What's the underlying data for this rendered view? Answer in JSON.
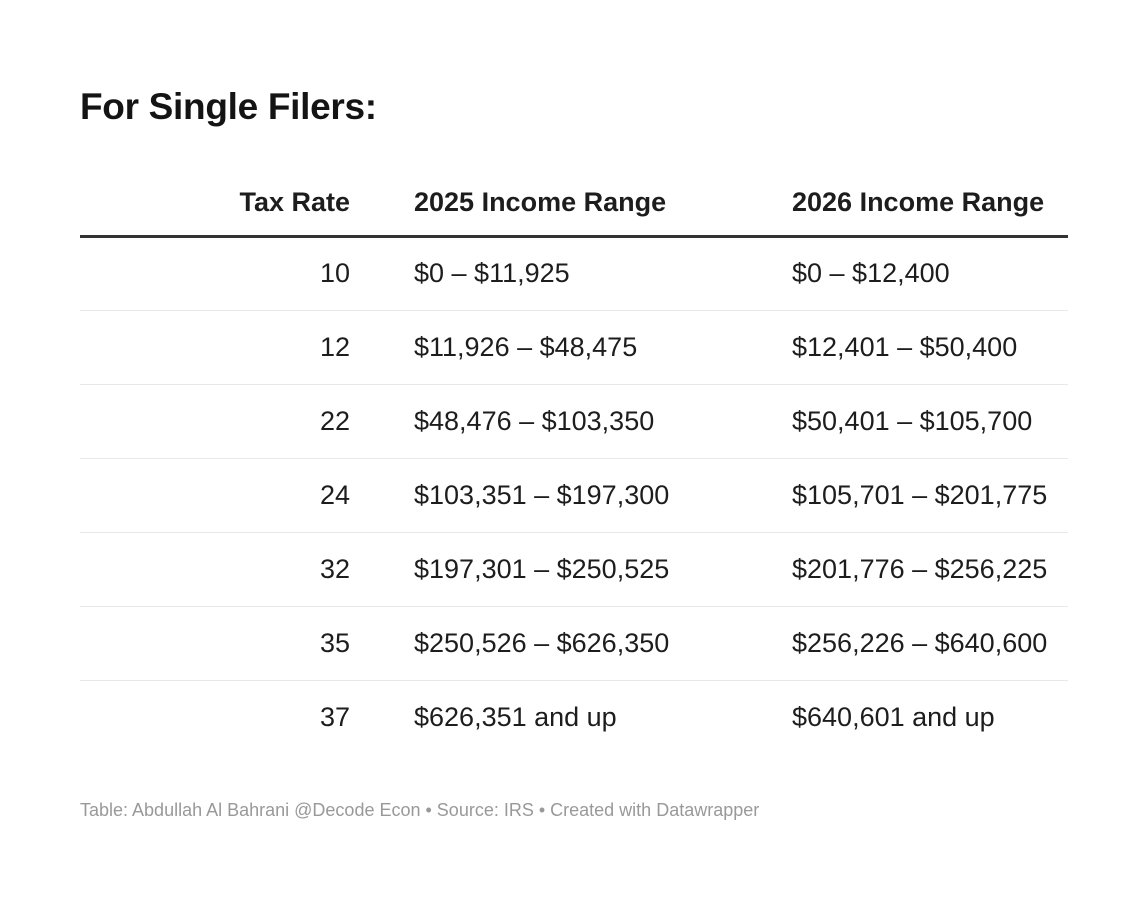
{
  "title": "For Single Filers:",
  "chart_data": {
    "type": "table",
    "title": "For Single Filers:",
    "columns": [
      "Tax Rate",
      "2025 Income Range",
      "2026 Income Range"
    ],
    "rows": [
      [
        "10",
        "$0 – $11,925",
        "$0 – $12,400"
      ],
      [
        "12",
        "$11,926 – $48,475",
        "$12,401 – $50,400"
      ],
      [
        "22",
        "$48,476 – $103,350",
        "$50,401 – $105,700"
      ],
      [
        "24",
        "$103,351 – $197,300",
        "$105,701 – $201,775"
      ],
      [
        "32",
        "$197,301 – $250,525",
        "$201,776 – $256,225"
      ],
      [
        "35",
        "$250,526 – $626,350",
        "$256,226 – $640,600"
      ],
      [
        "37",
        "$626,351 and up",
        "$640,601 and up"
      ]
    ],
    "tax_rates_percent": [
      10,
      12,
      22,
      24,
      32,
      35,
      37
    ],
    "attribution": "Table: Abdullah Al Bahrani @Decode Econ • Source: IRS • Created with Datawrapper",
    "layout_hints": {
      "header_rule": "3px solid dark",
      "row_separator": "1px light gray",
      "rate_column_alignment": "right",
      "range_columns_alignment": "left"
    }
  },
  "colors": {
    "background": "#ffffff",
    "text": "#1d1d1d",
    "header_rule": "#333333",
    "row_separator": "#e8e8e8",
    "attribution_text": "#999999"
  }
}
